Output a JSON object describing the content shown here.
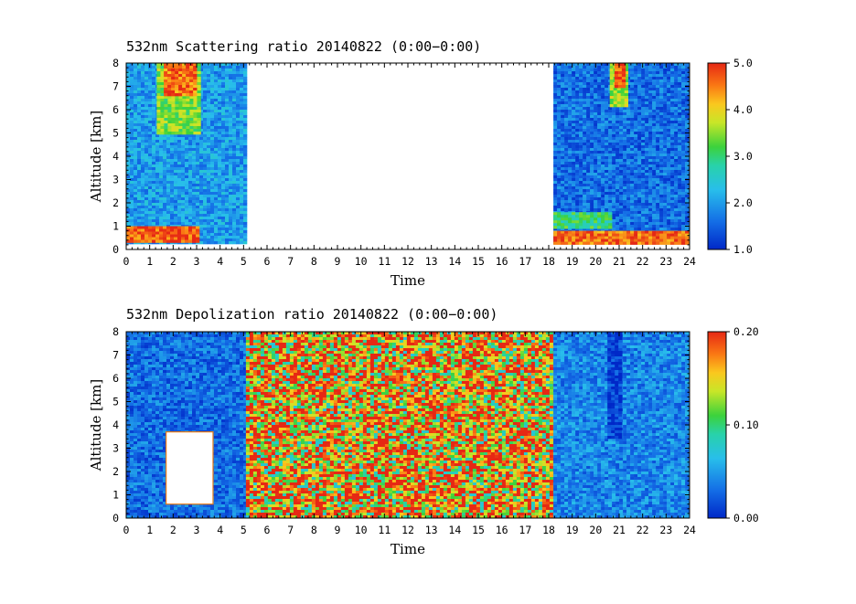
{
  "chart_data": [
    {
      "type": "heatmap",
      "title": "532nm Scattering ratio  20140822 (0:00−0:00)",
      "xlabel": "Time",
      "ylabel": "Altitude [km]",
      "xlim": [
        0,
        24
      ],
      "ylim": [
        0,
        8
      ],
      "xticks": [
        "0",
        "1",
        "2",
        "3",
        "4",
        "5",
        "6",
        "7",
        "8",
        "9",
        "10",
        "11",
        "12",
        "13",
        "14",
        "15",
        "16",
        "17",
        "18",
        "19",
        "20",
        "21",
        "22",
        "23",
        "24"
      ],
      "yticks": [
        "0",
        "1",
        "2",
        "3",
        "4",
        "5",
        "6",
        "7",
        "8"
      ],
      "colorbar": {
        "min": 1.0,
        "max": 5.0,
        "labels": [
          "1.0",
          "2.0",
          "3.0",
          "4.0",
          "5.0"
        ]
      },
      "regions": [
        {
          "t0": 0.0,
          "t1": 5.1,
          "h0": 0.3,
          "h1": 8.0,
          "level": 2.0
        },
        {
          "t0": 0.0,
          "t1": 3.0,
          "h0": 0.3,
          "h1": 1.0,
          "level": 4.7
        },
        {
          "t0": 1.3,
          "t1": 3.1,
          "h0": 5.0,
          "h1": 8.0,
          "level": 3.4
        },
        {
          "t0": 1.6,
          "t1": 3.0,
          "h0": 6.6,
          "h1": 8.0,
          "level": 4.6
        },
        {
          "t0": 18.2,
          "t1": 24.0,
          "h0": 0.3,
          "h1": 8.0,
          "level": 1.6
        },
        {
          "t0": 18.2,
          "t1": 20.6,
          "h0": 0.9,
          "h1": 1.6,
          "level": 3.0
        },
        {
          "t0": 18.2,
          "t1": 24.0,
          "h0": 0.3,
          "h1": 0.8,
          "level": 4.6
        },
        {
          "t0": 20.6,
          "t1": 21.3,
          "h0": 6.2,
          "h1": 8.0,
          "level": 3.6
        },
        {
          "t0": 20.8,
          "t1": 21.2,
          "h0": 7.0,
          "h1": 8.0,
          "level": 4.7
        }
      ]
    },
    {
      "type": "heatmap",
      "title": "532nm Depolization ratio  20140822 (0:00−0:00)",
      "xlabel": "Time",
      "ylabel": "Altitude [km]",
      "xlim": [
        0,
        24
      ],
      "ylim": [
        0,
        8
      ],
      "xticks": [
        "0",
        "1",
        "2",
        "3",
        "4",
        "5",
        "6",
        "7",
        "8",
        "9",
        "10",
        "11",
        "12",
        "13",
        "14",
        "15",
        "16",
        "17",
        "18",
        "19",
        "20",
        "21",
        "22",
        "23",
        "24"
      ],
      "yticks": [
        "0",
        "1",
        "2",
        "3",
        "4",
        "5",
        "6",
        "7",
        "8"
      ],
      "colorbar": {
        "min": 0.0,
        "max": 0.2,
        "labels": [
          "0.00",
          "0.10",
          "0.20"
        ]
      },
      "regions": [
        {
          "t0": 0.0,
          "t1": 5.1,
          "h0": 0.0,
          "h1": 8.0,
          "level": 0.03
        },
        {
          "t0": 1.7,
          "t1": 3.7,
          "h0": 0.6,
          "h1": 3.7,
          "level": null
        },
        {
          "t0": 5.1,
          "t1": 18.2,
          "h0": 0.0,
          "h1": 8.0,
          "level": 0.16
        },
        {
          "t0": 18.2,
          "t1": 24.0,
          "h0": 0.0,
          "h1": 8.0,
          "level": 0.04
        },
        {
          "t0": 20.5,
          "t1": 21.1,
          "h0": 3.5,
          "h1": 8.0,
          "level": 0.01
        }
      ]
    }
  ]
}
